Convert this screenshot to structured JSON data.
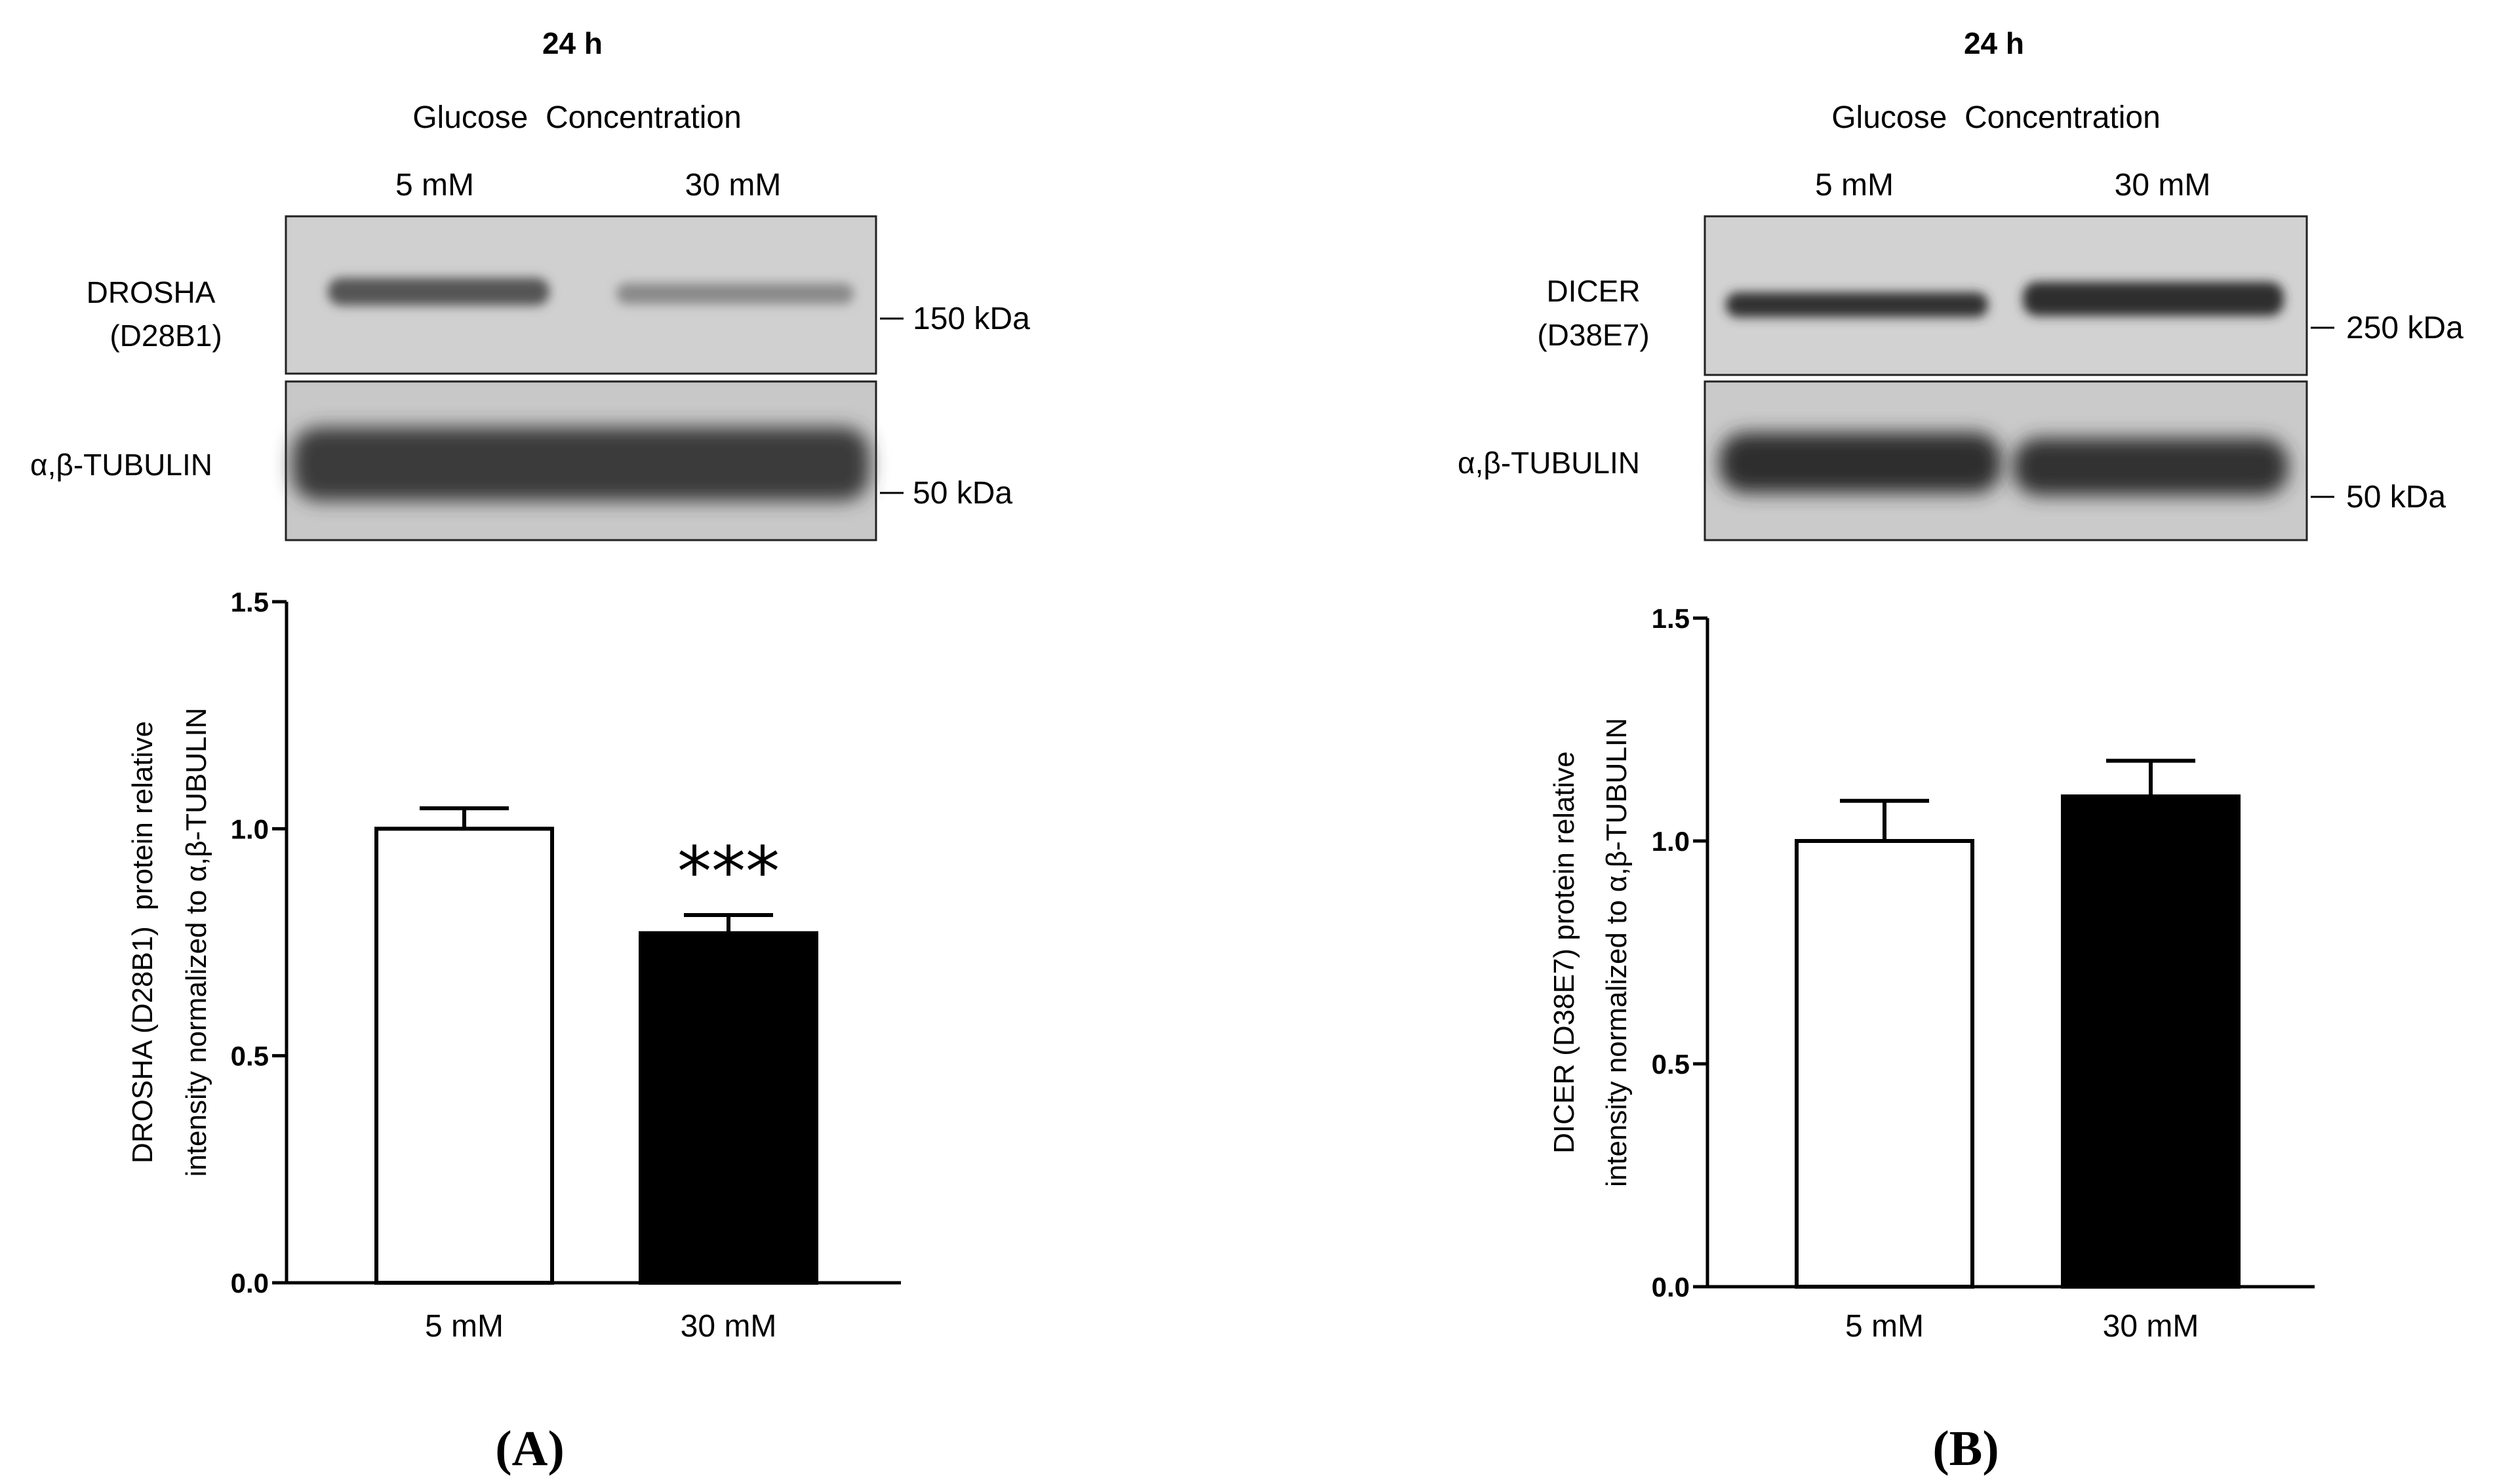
{
  "panels": [
    {
      "id": "A",
      "time_label": "24 h",
      "condition_label": "Glucose  Concentration",
      "lane_labels": [
        "5 mM",
        "30 mM"
      ],
      "blots": [
        {
          "protein": "DROSHA",
          "clone": "(D28B1)",
          "marker": "150 kDa"
        },
        {
          "protein": "α,β-TUBULIN",
          "clone": "",
          "marker": "50 kDa"
        }
      ],
      "panel_label": "A"
    },
    {
      "id": "B",
      "time_label": "24 h",
      "condition_label": "Glucose  Concentration",
      "lane_labels": [
        "5 mM",
        "30 mM"
      ],
      "blots": [
        {
          "protein": "DICER",
          "clone": "(D38E7)",
          "marker": "250 kDa"
        },
        {
          "protein": "α,β-TUBULIN",
          "clone": "",
          "marker": "50 kDa"
        }
      ],
      "panel_label": "B"
    }
  ],
  "chart_data": [
    {
      "type": "bar",
      "categories": [
        "5 mM",
        "30 mM"
      ],
      "values": [
        1.0,
        0.77
      ],
      "errors": [
        0.045,
        0.04
      ],
      "bar_colors": [
        "#ffffff",
        "#000000"
      ],
      "ylim": [
        0,
        1.5
      ],
      "yticks": [
        "0.0",
        "0.5",
        "1.0",
        "1.5"
      ],
      "ylabel_line1": "DROSHA (D28B1)  protein relative",
      "ylabel_line2": "intensity normalized to α,β-TUBULIN",
      "annotations": [
        {
          "category": "30 mM",
          "text": "***"
        }
      ]
    },
    {
      "type": "bar",
      "categories": [
        "5 mM",
        "30 mM"
      ],
      "values": [
        1.0,
        1.1
      ],
      "errors": [
        0.09,
        0.08
      ],
      "bar_colors": [
        "#ffffff",
        "#000000"
      ],
      "ylim": [
        0,
        1.5
      ],
      "yticks": [
        "0.0",
        "0.5",
        "1.0",
        "1.5"
      ],
      "ylabel_line1": "DICER (D38E7) protein relative",
      "ylabel_line2": "intensity normalized to α,β-TUBULIN",
      "annotations": []
    }
  ]
}
